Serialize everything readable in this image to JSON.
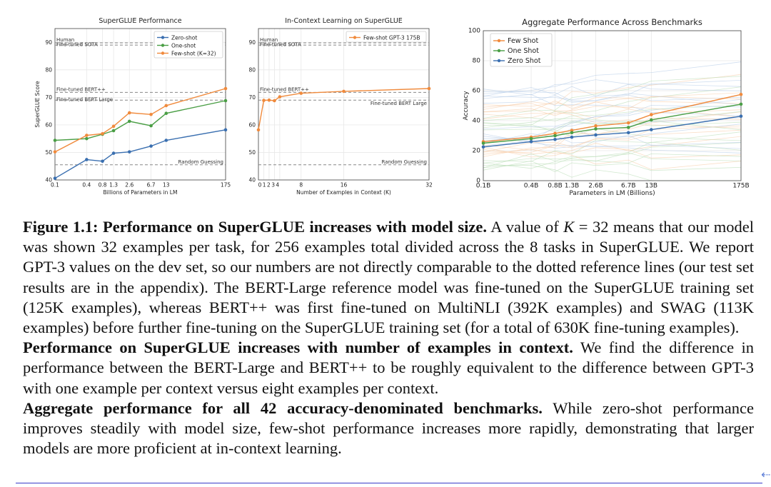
{
  "chart_data": [
    {
      "type": "line",
      "title": "SuperGLUE Performance",
      "xlabel": "Billions of Parameters in LM",
      "ylabel": "SuperGLUE Score",
      "x_scale": "log",
      "x_ticks": [
        "0.1",
        "0.4",
        "0.8",
        "1.3",
        "2.6",
        "6.7",
        "13",
        "175"
      ],
      "x": [
        "0.1",
        "0.4",
        "0.8",
        "1.3",
        "2.6",
        "6.7",
        "13",
        "175"
      ],
      "ylim": [
        40,
        95
      ],
      "y_ticks": [
        40,
        50,
        60,
        70,
        80,
        90
      ],
      "legend_position": "top-right",
      "series": [
        {
          "name": "Zero-shot",
          "color": "#3a6fb0",
          "values": [
            40.6,
            47.4,
            46.8,
            49.7,
            50.2,
            52.3,
            54.4,
            58.2
          ]
        },
        {
          "name": "One-shot",
          "color": "#4a9e45",
          "values": [
            54.4,
            55.0,
            56.6,
            57.9,
            61.3,
            59.7,
            64.2,
            68.8
          ]
        },
        {
          "name": "Few-shot (K=32)",
          "color": "#f08a3c",
          "values": [
            50.2,
            56.2,
            56.8,
            59.5,
            64.4,
            63.8,
            67.0,
            73.2
          ]
        }
      ],
      "reference_lines": [
        {
          "label": "Human",
          "value": 89.8
        },
        {
          "label": "Fine-tuned SOTA",
          "value": 89.0
        },
        {
          "label": "Fine-tuned BERT++",
          "value": 71.8
        },
        {
          "label": "Fine-tuned BERT Large",
          "value": 69.0
        },
        {
          "label": "Random Guessing",
          "value": 45.5
        }
      ]
    },
    {
      "type": "line",
      "title": "In-Context Learning on SuperGLUE",
      "xlabel": "Number of Examples in Context (K)",
      "x_ticks": [
        "0",
        "1",
        "2",
        "3",
        "4",
        "8",
        "16",
        "32"
      ],
      "x": [
        0,
        1,
        2,
        3,
        4,
        8,
        16,
        32
      ],
      "ylim": [
        40,
        95
      ],
      "y_ticks": [
        40,
        50,
        60,
        70,
        80,
        90
      ],
      "legend_position": "top-right",
      "series": [
        {
          "name": "Few-shot GPT-3 175B",
          "color": "#f08a3c",
          "values": [
            58.2,
            68.9,
            69.0,
            68.8,
            70.2,
            71.5,
            72.2,
            73.2
          ]
        }
      ],
      "reference_lines": [
        {
          "label": "Human",
          "value": 89.8
        },
        {
          "label": "Fine-tuned SOTA",
          "value": 89.0
        },
        {
          "label": "Fine-tuned BERT++",
          "value": 71.8
        },
        {
          "label": "Fine-tuned BERT Large",
          "value": 69.0
        },
        {
          "label": "Random Guessing",
          "value": 45.5
        }
      ]
    },
    {
      "type": "line",
      "title": "Aggregate Performance Across Benchmarks",
      "xlabel": "Parameters in LM (Billions)",
      "ylabel": "Accuracy",
      "x_scale": "log",
      "x_ticks": [
        "0.1B",
        "0.4B",
        "0.8B",
        "1.3B",
        "2.6B",
        "6.7B",
        "13B",
        "175B"
      ],
      "x": [
        "0.1B",
        "0.4B",
        "0.8B",
        "1.3B",
        "2.6B",
        "6.7B",
        "13B",
        "175B"
      ],
      "ylim": [
        0,
        100
      ],
      "y_ticks": [
        0,
        20,
        40,
        60,
        80,
        100
      ],
      "legend_position": "top-left",
      "background_lines": "faint per-benchmark curves",
      "series": [
        {
          "name": "Few Shot",
          "color": "#f08a3c",
          "values": [
            26.0,
            29.0,
            31.5,
            33.5,
            36.5,
            38.5,
            44.0,
            57.5
          ]
        },
        {
          "name": "One Shot",
          "color": "#4a9e45",
          "values": [
            25.0,
            28.0,
            30.0,
            32.0,
            34.5,
            35.5,
            40.5,
            51.0
          ]
        },
        {
          "name": "Zero Shot",
          "color": "#3a6fb0",
          "values": [
            22.5,
            26.0,
            27.5,
            29.0,
            30.5,
            32.0,
            34.0,
            43.0
          ]
        }
      ]
    }
  ],
  "caption": {
    "p1_bold": "Figure 1.1: Performance on SuperGLUE increases with model size.",
    "p1_a": " A value of ",
    "p1_k": "K",
    "p1_eq": " = 32 means that our model was shown 32 examples per task, for 256 examples total divided across the 8 tasks in SuperGLUE. We report GPT-3 values on the dev set, so our numbers are not directly comparable to the dotted reference lines (our test set results are in the appendix). The BERT-Large reference model was fine-tuned on the SuperGLUE training set (125K examples), whereas BERT++ was first fine-tuned on MultiNLI (392K examples) and SWAG (113K examples) before further fine-tuning on the SuperGLUE training set (for a total of 630K fine-tuning examples).",
    "p2_bold": "Performance on SuperGLUE increases with number of examples in context.",
    "p2_text": " We find the difference in performance between the BERT-Large and BERT++ to be roughly equivalent to the difference between GPT-3 with one example per context versus eight examples per context.",
    "p3_bold": "Aggregate performance for all 42 accuracy-denominated benchmarks.",
    "p3_text": " While zero-shot performance improves steadily with model size, few-shot performance increases more rapidly, demonstrating that larger models are more proficient at in-context learning."
  },
  "edge_icon": "left-arrow-icon"
}
